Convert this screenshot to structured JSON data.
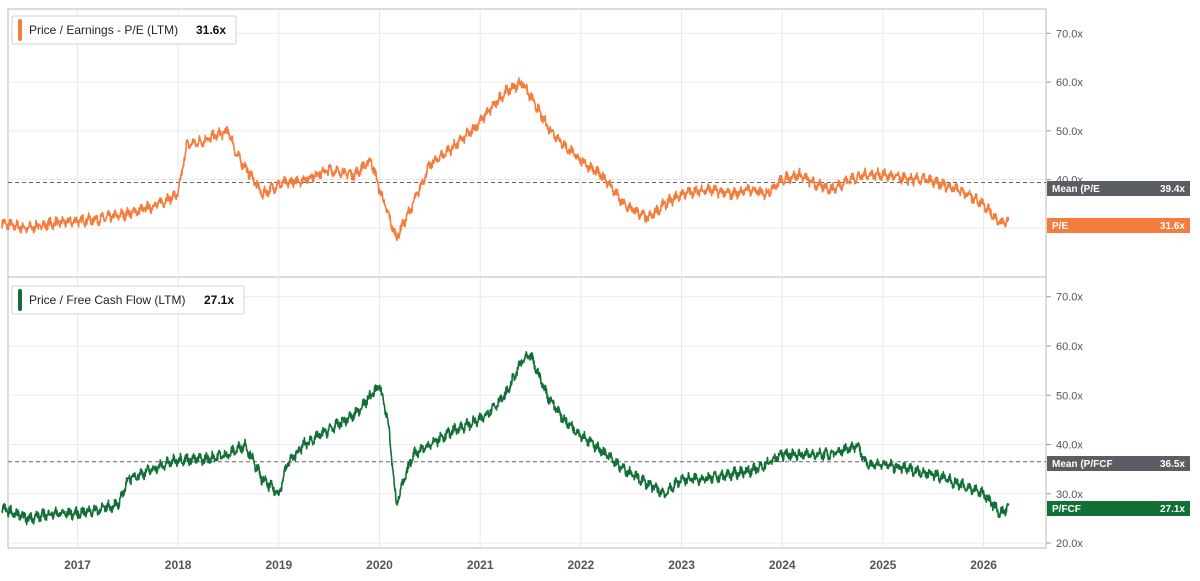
{
  "chart_data": [
    {
      "type": "line",
      "title": "",
      "legend": {
        "label": "Price / Earnings - P/E (LTM)",
        "value": "31.6x",
        "placement": "top-left"
      },
      "color": "#f47c3c",
      "ylim": [
        20,
        75
      ],
      "yticks": [
        "30.0x",
        "40.0x",
        "50.0x",
        "60.0x",
        "70.0x"
      ],
      "mean": {
        "label": "Mean (P/E (LTM))",
        "value": 39.4,
        "value_label": "39.4x"
      },
      "current": {
        "label": "P/E (LTM)",
        "value": 31.6,
        "value_label": "31.6x"
      },
      "grid": true,
      "series": [
        {
          "x": [
            "2016-04",
            "2016-07",
            "2016-10",
            "2017-01",
            "2017-04",
            "2017-07",
            "2017-10",
            "2018-01",
            "2018-02",
            "2018-04",
            "2018-07",
            "2018-08",
            "2018-10",
            "2018-11",
            "2019-01",
            "2019-04",
            "2019-07",
            "2019-10",
            "2019-12",
            "2020-01",
            "2020-03",
            "2020-05",
            "2020-07",
            "2020-10",
            "2020-12",
            "2021-01",
            "2021-04",
            "2021-06",
            "2021-07",
            "2021-09",
            "2021-11",
            "2022-01",
            "2022-04",
            "2022-06",
            "2022-09",
            "2022-11",
            "2023-01",
            "2023-04",
            "2023-07",
            "2023-09",
            "2023-11",
            "2024-01",
            "2024-03",
            "2024-05",
            "2024-07",
            "2024-09",
            "2024-11",
            "2025-01",
            "2025-04",
            "2025-06",
            "2025-08",
            "2025-10",
            "2026-01",
            "2026-03",
            "2026-04"
          ],
          "y": [
            31,
            30,
            31,
            31.5,
            32,
            33,
            34.5,
            37,
            47,
            48,
            50,
            45,
            40,
            37,
            39,
            40,
            42,
            41,
            44,
            38,
            28,
            35,
            43,
            47,
            50,
            52,
            58,
            60,
            57,
            51,
            47,
            44,
            40,
            35,
            32,
            35,
            37,
            38,
            37,
            38,
            37,
            40,
            41,
            39,
            38,
            40,
            41,
            41,
            40,
            40,
            39,
            38,
            35,
            31,
            31.6
          ]
        }
      ]
    },
    {
      "type": "line",
      "title": "",
      "legend": {
        "label": "Price / Free Cash Flow (LTM)",
        "value": "27.1x",
        "placement": "top-left"
      },
      "color": "#127036",
      "ylim": [
        19,
        74
      ],
      "yticks": [
        "20.0x",
        "30.0x",
        "40.0x",
        "50.0x",
        "60.0x",
        "70.0x"
      ],
      "mean": {
        "label": "Mean (P/FCF (LTM))",
        "value": 36.5,
        "value_label": "36.5x"
      },
      "current": {
        "label": "P/FCF (LTM)",
        "value": 27.1,
        "value_label": "27.1x"
      },
      "grid": true,
      "series": [
        {
          "x": [
            "2016-04",
            "2016-07",
            "2016-10",
            "2017-01",
            "2017-04",
            "2017-06",
            "2017-07",
            "2017-10",
            "2018-01",
            "2018-04",
            "2018-07",
            "2018-09",
            "2018-11",
            "2019-01",
            "2019-02",
            "2019-04",
            "2019-07",
            "2019-10",
            "2020-01",
            "2020-02",
            "2020-03",
            "2020-05",
            "2020-07",
            "2020-10",
            "2021-01",
            "2021-04",
            "2021-06",
            "2021-07",
            "2021-09",
            "2021-11",
            "2022-01",
            "2022-04",
            "2022-06",
            "2022-09",
            "2022-11",
            "2023-01",
            "2023-04",
            "2023-07",
            "2023-10",
            "2024-01",
            "2024-04",
            "2024-07",
            "2024-10",
            "2024-11",
            "2025-01",
            "2025-04",
            "2025-07",
            "2025-10",
            "2026-01",
            "2026-03",
            "2026-04"
          ],
          "y": [
            27,
            25,
            26,
            26,
            27,
            28,
            33,
            35,
            37,
            37,
            38,
            40,
            33,
            30,
            36,
            40,
            43,
            46,
            52,
            45,
            28,
            38,
            40,
            43,
            45,
            50,
            57,
            58,
            50,
            45,
            42,
            38,
            35,
            32,
            30,
            33,
            33,
            34,
            35,
            38,
            38,
            38,
            40,
            36,
            36,
            35,
            34,
            32,
            30,
            26,
            27.1
          ]
        }
      ]
    }
  ],
  "x_axis": {
    "ticks": [
      "2017",
      "2018",
      "2019",
      "2020",
      "2021",
      "2022",
      "2023",
      "2024",
      "2025",
      "2026"
    ]
  },
  "tags": {
    "pe_mean": {
      "label": "Mean (P/E",
      "value": "39.4x"
    },
    "pe_current": {
      "label": "P/E",
      "value": "31.6x"
    },
    "pfcf_mean": {
      "label": "Mean (P/FCF",
      "value": "36.5x"
    },
    "pfcf_current": {
      "label": "P/FCF",
      "value": "27.1x"
    }
  },
  "colors": {
    "pe": "#f47c3c",
    "pfcf": "#127036",
    "mean_tag": "#5a5d62"
  }
}
